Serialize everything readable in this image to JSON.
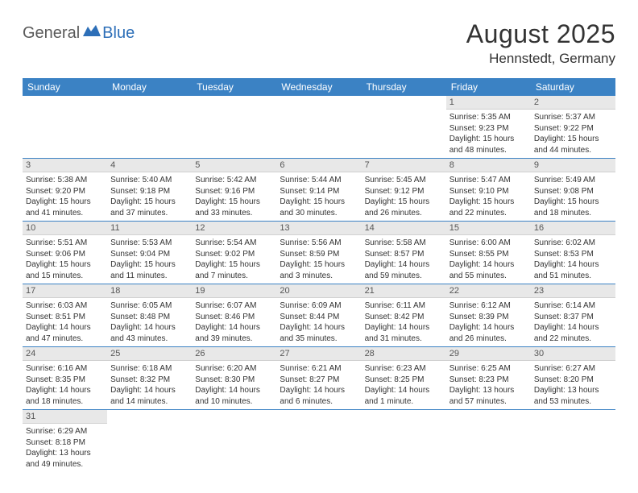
{
  "logo": {
    "part1": "General",
    "part2": "Blue"
  },
  "title": {
    "month": "August 2025",
    "location": "Hennstedt, Germany"
  },
  "colors": {
    "header_bg": "#3b82c4",
    "header_text": "#ffffff",
    "daynum_bg": "#e8e8e8",
    "row_border": "#3b82c4",
    "text": "#333333",
    "logo_gray": "#5a5a5a",
    "logo_blue": "#2d6fb8"
  },
  "weekdays": [
    "Sunday",
    "Monday",
    "Tuesday",
    "Wednesday",
    "Thursday",
    "Friday",
    "Saturday"
  ],
  "weeks": [
    [
      {
        "empty": true
      },
      {
        "empty": true
      },
      {
        "empty": true
      },
      {
        "empty": true
      },
      {
        "empty": true
      },
      {
        "day": "1",
        "sunrise": "Sunrise: 5:35 AM",
        "sunset": "Sunset: 9:23 PM",
        "daylight": "Daylight: 15 hours and 48 minutes."
      },
      {
        "day": "2",
        "sunrise": "Sunrise: 5:37 AM",
        "sunset": "Sunset: 9:22 PM",
        "daylight": "Daylight: 15 hours and 44 minutes."
      }
    ],
    [
      {
        "day": "3",
        "sunrise": "Sunrise: 5:38 AM",
        "sunset": "Sunset: 9:20 PM",
        "daylight": "Daylight: 15 hours and 41 minutes."
      },
      {
        "day": "4",
        "sunrise": "Sunrise: 5:40 AM",
        "sunset": "Sunset: 9:18 PM",
        "daylight": "Daylight: 15 hours and 37 minutes."
      },
      {
        "day": "5",
        "sunrise": "Sunrise: 5:42 AM",
        "sunset": "Sunset: 9:16 PM",
        "daylight": "Daylight: 15 hours and 33 minutes."
      },
      {
        "day": "6",
        "sunrise": "Sunrise: 5:44 AM",
        "sunset": "Sunset: 9:14 PM",
        "daylight": "Daylight: 15 hours and 30 minutes."
      },
      {
        "day": "7",
        "sunrise": "Sunrise: 5:45 AM",
        "sunset": "Sunset: 9:12 PM",
        "daylight": "Daylight: 15 hours and 26 minutes."
      },
      {
        "day": "8",
        "sunrise": "Sunrise: 5:47 AM",
        "sunset": "Sunset: 9:10 PM",
        "daylight": "Daylight: 15 hours and 22 minutes."
      },
      {
        "day": "9",
        "sunrise": "Sunrise: 5:49 AM",
        "sunset": "Sunset: 9:08 PM",
        "daylight": "Daylight: 15 hours and 18 minutes."
      }
    ],
    [
      {
        "day": "10",
        "sunrise": "Sunrise: 5:51 AM",
        "sunset": "Sunset: 9:06 PM",
        "daylight": "Daylight: 15 hours and 15 minutes."
      },
      {
        "day": "11",
        "sunrise": "Sunrise: 5:53 AM",
        "sunset": "Sunset: 9:04 PM",
        "daylight": "Daylight: 15 hours and 11 minutes."
      },
      {
        "day": "12",
        "sunrise": "Sunrise: 5:54 AM",
        "sunset": "Sunset: 9:02 PM",
        "daylight": "Daylight: 15 hours and 7 minutes."
      },
      {
        "day": "13",
        "sunrise": "Sunrise: 5:56 AM",
        "sunset": "Sunset: 8:59 PM",
        "daylight": "Daylight: 15 hours and 3 minutes."
      },
      {
        "day": "14",
        "sunrise": "Sunrise: 5:58 AM",
        "sunset": "Sunset: 8:57 PM",
        "daylight": "Daylight: 14 hours and 59 minutes."
      },
      {
        "day": "15",
        "sunrise": "Sunrise: 6:00 AM",
        "sunset": "Sunset: 8:55 PM",
        "daylight": "Daylight: 14 hours and 55 minutes."
      },
      {
        "day": "16",
        "sunrise": "Sunrise: 6:02 AM",
        "sunset": "Sunset: 8:53 PM",
        "daylight": "Daylight: 14 hours and 51 minutes."
      }
    ],
    [
      {
        "day": "17",
        "sunrise": "Sunrise: 6:03 AM",
        "sunset": "Sunset: 8:51 PM",
        "daylight": "Daylight: 14 hours and 47 minutes."
      },
      {
        "day": "18",
        "sunrise": "Sunrise: 6:05 AM",
        "sunset": "Sunset: 8:48 PM",
        "daylight": "Daylight: 14 hours and 43 minutes."
      },
      {
        "day": "19",
        "sunrise": "Sunrise: 6:07 AM",
        "sunset": "Sunset: 8:46 PM",
        "daylight": "Daylight: 14 hours and 39 minutes."
      },
      {
        "day": "20",
        "sunrise": "Sunrise: 6:09 AM",
        "sunset": "Sunset: 8:44 PM",
        "daylight": "Daylight: 14 hours and 35 minutes."
      },
      {
        "day": "21",
        "sunrise": "Sunrise: 6:11 AM",
        "sunset": "Sunset: 8:42 PM",
        "daylight": "Daylight: 14 hours and 31 minutes."
      },
      {
        "day": "22",
        "sunrise": "Sunrise: 6:12 AM",
        "sunset": "Sunset: 8:39 PM",
        "daylight": "Daylight: 14 hours and 26 minutes."
      },
      {
        "day": "23",
        "sunrise": "Sunrise: 6:14 AM",
        "sunset": "Sunset: 8:37 PM",
        "daylight": "Daylight: 14 hours and 22 minutes."
      }
    ],
    [
      {
        "day": "24",
        "sunrise": "Sunrise: 6:16 AM",
        "sunset": "Sunset: 8:35 PM",
        "daylight": "Daylight: 14 hours and 18 minutes."
      },
      {
        "day": "25",
        "sunrise": "Sunrise: 6:18 AM",
        "sunset": "Sunset: 8:32 PM",
        "daylight": "Daylight: 14 hours and 14 minutes."
      },
      {
        "day": "26",
        "sunrise": "Sunrise: 6:20 AM",
        "sunset": "Sunset: 8:30 PM",
        "daylight": "Daylight: 14 hours and 10 minutes."
      },
      {
        "day": "27",
        "sunrise": "Sunrise: 6:21 AM",
        "sunset": "Sunset: 8:27 PM",
        "daylight": "Daylight: 14 hours and 6 minutes."
      },
      {
        "day": "28",
        "sunrise": "Sunrise: 6:23 AM",
        "sunset": "Sunset: 8:25 PM",
        "daylight": "Daylight: 14 hours and 1 minute."
      },
      {
        "day": "29",
        "sunrise": "Sunrise: 6:25 AM",
        "sunset": "Sunset: 8:23 PM",
        "daylight": "Daylight: 13 hours and 57 minutes."
      },
      {
        "day": "30",
        "sunrise": "Sunrise: 6:27 AM",
        "sunset": "Sunset: 8:20 PM",
        "daylight": "Daylight: 13 hours and 53 minutes."
      }
    ],
    [
      {
        "day": "31",
        "sunrise": "Sunrise: 6:29 AM",
        "sunset": "Sunset: 8:18 PM",
        "daylight": "Daylight: 13 hours and 49 minutes."
      },
      {
        "empty": true
      },
      {
        "empty": true
      },
      {
        "empty": true
      },
      {
        "empty": true
      },
      {
        "empty": true
      },
      {
        "empty": true
      }
    ]
  ]
}
